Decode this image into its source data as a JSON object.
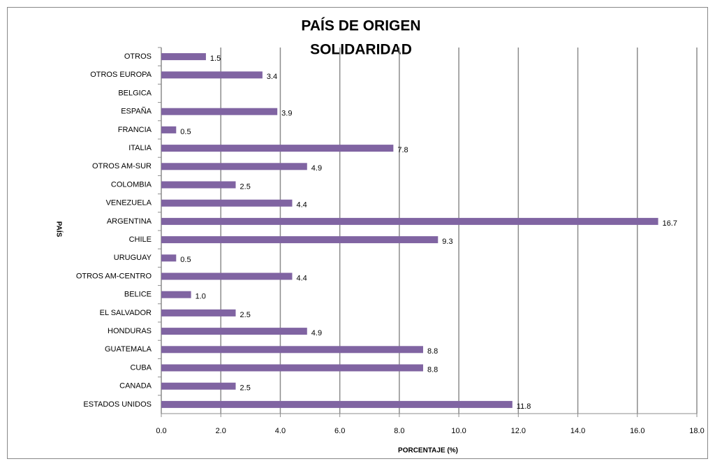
{
  "chart_data": {
    "type": "hbar",
    "title": "PAÍS DE ORIGEN",
    "subtitle": "SOLIDARIDAD",
    "x_label": "PORCENTAJE (%)",
    "y_label": "PAÍS",
    "categories": [
      "OTROS",
      "OTROS EUROPA",
      "BELGICA",
      "ESPAÑA",
      "FRANCIA",
      "ITALIA",
      "OTROS AM-SUR",
      "COLOMBIA",
      "VENEZUELA",
      "ARGENTINA",
      "CHILE",
      "URUGUAY",
      "OTROS AM-CENTRO",
      "BELICE",
      "EL SALVADOR",
      "HONDURAS",
      "GUATEMALA",
      "CUBA",
      "CANADA",
      "ESTADOS UNIDOS"
    ],
    "values": [
      1.5,
      3.4,
      null,
      3.9,
      0.5,
      7.8,
      4.9,
      2.5,
      4.4,
      16.7,
      9.3,
      0.5,
      4.4,
      1,
      2.5,
      4.9,
      8.8,
      8.8,
      2.5,
      11.8
    ],
    "value_labels": [
      "1.5",
      "3.4",
      null,
      "3.9",
      "0.5",
      "7.8",
      "4.9",
      "2.5",
      "4.4",
      "16.7",
      "9.3",
      "0.5",
      "4.4",
      "1.0",
      "2.5",
      "4.9",
      "8.8",
      "8.8",
      "2.5",
      "11.8"
    ],
    "color": "#8064a2",
    "xlim": [
      0,
      18
    ],
    "xticks": [
      {
        "value": 0,
        "label": "0.0"
      },
      {
        "value": 2,
        "label": "2.0"
      },
      {
        "value": 4,
        "label": "4.0"
      },
      {
        "value": 6,
        "label": "6.0"
      },
      {
        "value": 8,
        "label": "8.0"
      },
      {
        "value": 10,
        "label": "10.0"
      },
      {
        "value": 12,
        "label": "12.0"
      },
      {
        "value": 14,
        "label": "14.0"
      },
      {
        "value": 16,
        "label": "16.0"
      },
      {
        "value": 18,
        "label": "18.0"
      }
    ],
    "grid": true
  }
}
